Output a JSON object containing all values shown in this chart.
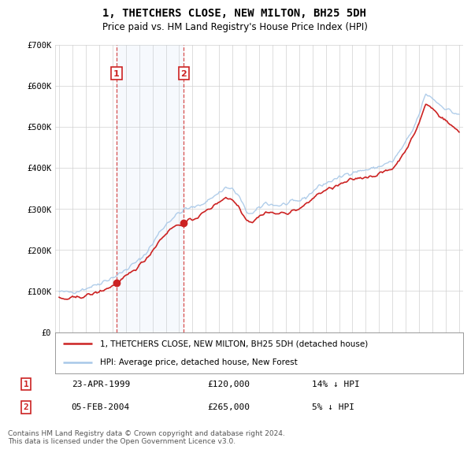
{
  "title": "1, THETCHERS CLOSE, NEW MILTON, BH25 5DH",
  "subtitle": "Price paid vs. HM Land Registry's House Price Index (HPI)",
  "legend_line1": "1, THETCHERS CLOSE, NEW MILTON, BH25 5DH (detached house)",
  "legend_line2": "HPI: Average price, detached house, New Forest",
  "footnote": "Contains HM Land Registry data © Crown copyright and database right 2024.\nThis data is licensed under the Open Government Licence v3.0.",
  "sale1_date": "23-APR-1999",
  "sale1_price": "£120,000",
  "sale1_hpi": "14% ↓ HPI",
  "sale2_date": "05-FEB-2004",
  "sale2_price": "£265,000",
  "sale2_hpi": "5% ↓ HPI",
  "hpi_color": "#a8c8e8",
  "price_color": "#cc2222",
  "marker_color": "#cc2222",
  "sale1_x": 1999.31,
  "sale2_x": 2004.34,
  "sale1_y": 120000,
  "sale2_y": 265000,
  "ylim": [
    0,
    700000
  ],
  "xlim_start": 1994.7,
  "xlim_end": 2025.3,
  "hpi_points": [
    [
      1995.0,
      98000
    ],
    [
      1995.5,
      97000
    ],
    [
      1996.0,
      99000
    ],
    [
      1996.5,
      101000
    ],
    [
      1997.0,
      107000
    ],
    [
      1997.5,
      112000
    ],
    [
      1998.0,
      119000
    ],
    [
      1998.5,
      126000
    ],
    [
      1999.0,
      133000
    ],
    [
      1999.5,
      141000
    ],
    [
      2000.0,
      152000
    ],
    [
      2000.5,
      164000
    ],
    [
      2001.0,
      175000
    ],
    [
      2001.5,
      192000
    ],
    [
      2002.0,
      215000
    ],
    [
      2002.5,
      242000
    ],
    [
      2003.0,
      262000
    ],
    [
      2003.5,
      278000
    ],
    [
      2004.0,
      290000
    ],
    [
      2004.5,
      300000
    ],
    [
      2005.0,
      303000
    ],
    [
      2005.5,
      308000
    ],
    [
      2006.0,
      318000
    ],
    [
      2006.5,
      328000
    ],
    [
      2007.0,
      340000
    ],
    [
      2007.5,
      352000
    ],
    [
      2008.0,
      348000
    ],
    [
      2008.5,
      330000
    ],
    [
      2009.0,
      295000
    ],
    [
      2009.5,
      287000
    ],
    [
      2010.0,
      302000
    ],
    [
      2010.5,
      315000
    ],
    [
      2011.0,
      310000
    ],
    [
      2011.5,
      308000
    ],
    [
      2012.0,
      312000
    ],
    [
      2012.5,
      316000
    ],
    [
      2013.0,
      320000
    ],
    [
      2013.5,
      328000
    ],
    [
      2014.0,
      342000
    ],
    [
      2014.5,
      356000
    ],
    [
      2015.0,
      362000
    ],
    [
      2015.5,
      370000
    ],
    [
      2016.0,
      375000
    ],
    [
      2016.5,
      385000
    ],
    [
      2017.0,
      390000
    ],
    [
      2017.5,
      392000
    ],
    [
      2018.0,
      395000
    ],
    [
      2018.5,
      398000
    ],
    [
      2019.0,
      403000
    ],
    [
      2019.5,
      410000
    ],
    [
      2020.0,
      415000
    ],
    [
      2020.5,
      438000
    ],
    [
      2021.0,
      462000
    ],
    [
      2021.5,
      490000
    ],
    [
      2022.0,
      530000
    ],
    [
      2022.5,
      580000
    ],
    [
      2023.0,
      570000
    ],
    [
      2023.5,
      555000
    ],
    [
      2024.0,
      545000
    ],
    [
      2024.5,
      535000
    ],
    [
      2025.0,
      530000
    ]
  ],
  "price_points": [
    [
      1995.0,
      82000
    ],
    [
      1995.5,
      80000
    ],
    [
      1996.0,
      83000
    ],
    [
      1996.5,
      85000
    ],
    [
      1997.0,
      89000
    ],
    [
      1997.5,
      93000
    ],
    [
      1998.0,
      98000
    ],
    [
      1998.5,
      105000
    ],
    [
      1999.0,
      112000
    ],
    [
      1999.31,
      120000
    ],
    [
      1999.5,
      122000
    ],
    [
      2000.0,
      135000
    ],
    [
      2000.5,
      148000
    ],
    [
      2001.0,
      162000
    ],
    [
      2001.5,
      178000
    ],
    [
      2002.0,
      198000
    ],
    [
      2002.5,
      222000
    ],
    [
      2003.0,
      240000
    ],
    [
      2003.5,
      255000
    ],
    [
      2004.0,
      262000
    ],
    [
      2004.34,
      265000
    ],
    [
      2004.5,
      268000
    ],
    [
      2005.0,
      275000
    ],
    [
      2005.5,
      282000
    ],
    [
      2006.0,
      295000
    ],
    [
      2006.5,
      305000
    ],
    [
      2007.0,
      318000
    ],
    [
      2007.5,
      328000
    ],
    [
      2008.0,
      322000
    ],
    [
      2008.5,
      305000
    ],
    [
      2009.0,
      275000
    ],
    [
      2009.5,
      268000
    ],
    [
      2010.0,
      282000
    ],
    [
      2010.5,
      292000
    ],
    [
      2011.0,
      290000
    ],
    [
      2011.5,
      288000
    ],
    [
      2012.0,
      290000
    ],
    [
      2012.5,
      295000
    ],
    [
      2013.0,
      300000
    ],
    [
      2013.5,
      310000
    ],
    [
      2014.0,
      325000
    ],
    [
      2014.5,
      338000
    ],
    [
      2015.0,
      345000
    ],
    [
      2015.5,
      352000
    ],
    [
      2016.0,
      358000
    ],
    [
      2016.5,
      365000
    ],
    [
      2017.0,
      372000
    ],
    [
      2017.5,
      375000
    ],
    [
      2018.0,
      378000
    ],
    [
      2018.5,
      380000
    ],
    [
      2019.0,
      385000
    ],
    [
      2019.5,
      392000
    ],
    [
      2020.0,
      398000
    ],
    [
      2020.5,
      418000
    ],
    [
      2021.0,
      445000
    ],
    [
      2021.5,
      472000
    ],
    [
      2022.0,
      510000
    ],
    [
      2022.5,
      555000
    ],
    [
      2023.0,
      545000
    ],
    [
      2023.5,
      528000
    ],
    [
      2024.0,
      515000
    ],
    [
      2024.5,
      500000
    ],
    [
      2025.0,
      490000
    ]
  ]
}
